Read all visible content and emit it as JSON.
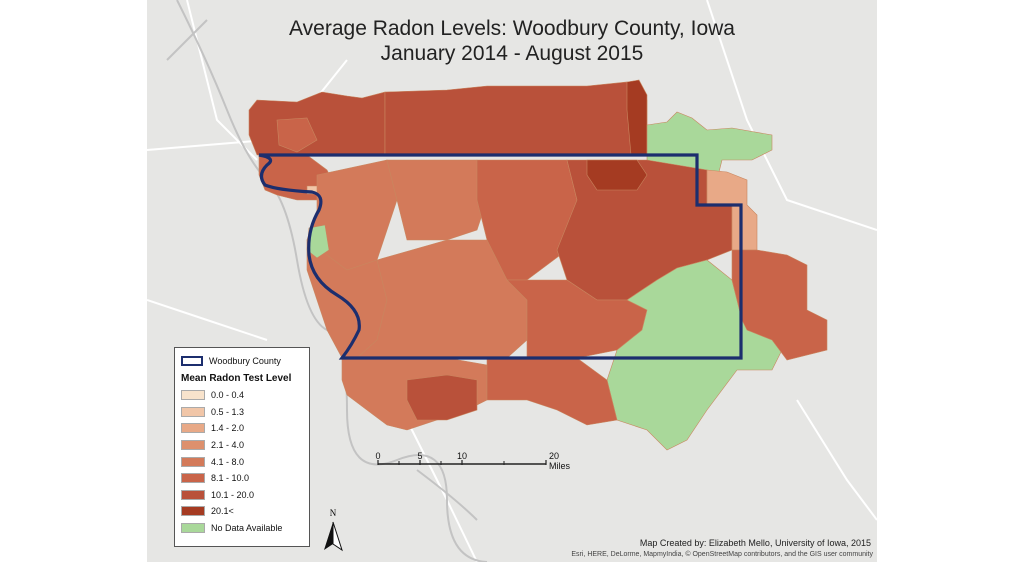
{
  "title": {
    "line1": "Average Radon Levels: Woodbury County, Iowa",
    "line2": "January 2014 - August 2015"
  },
  "legend": {
    "boundary_label": "Woodbury County",
    "heading": "Mean Radon Test Level",
    "classes": [
      {
        "label": "0.0 - 0.4",
        "color": "#f8e3cc"
      },
      {
        "label": "0.5 - 1.3",
        "color": "#f1c6a8"
      },
      {
        "label": "1.4 - 2.0",
        "color": "#e8a987"
      },
      {
        "label": "2.1 - 4.0",
        "color": "#dd906d"
      },
      {
        "label": "4.1 - 8.0",
        "color": "#d37a5a"
      },
      {
        "label": "8.1 - 10.0",
        "color": "#c96449"
      },
      {
        "label": "10.1 - 20.0",
        "color": "#b9513a"
      },
      {
        "label": "20.1<",
        "color": "#a53b22"
      },
      {
        "label": "No Data Available",
        "color": "#a9d89a"
      }
    ]
  },
  "scale_bar": {
    "ticks": [
      "0",
      "5",
      "10",
      "20 Miles"
    ]
  },
  "north_arrow": {
    "label": "N",
    "icon": "north-arrow-icon"
  },
  "credit": "Map Created by: Elizabeth Mello, University of Iowa, 2015",
  "attribution": "Esri, HERE, DeLorme, MapmyIndia, © OpenStreetMap contributors, and the GIS user community",
  "colors": {
    "county_boundary": "#1c2e6e",
    "basemap": "#e6e6e4",
    "river": "#b9b9b9"
  }
}
